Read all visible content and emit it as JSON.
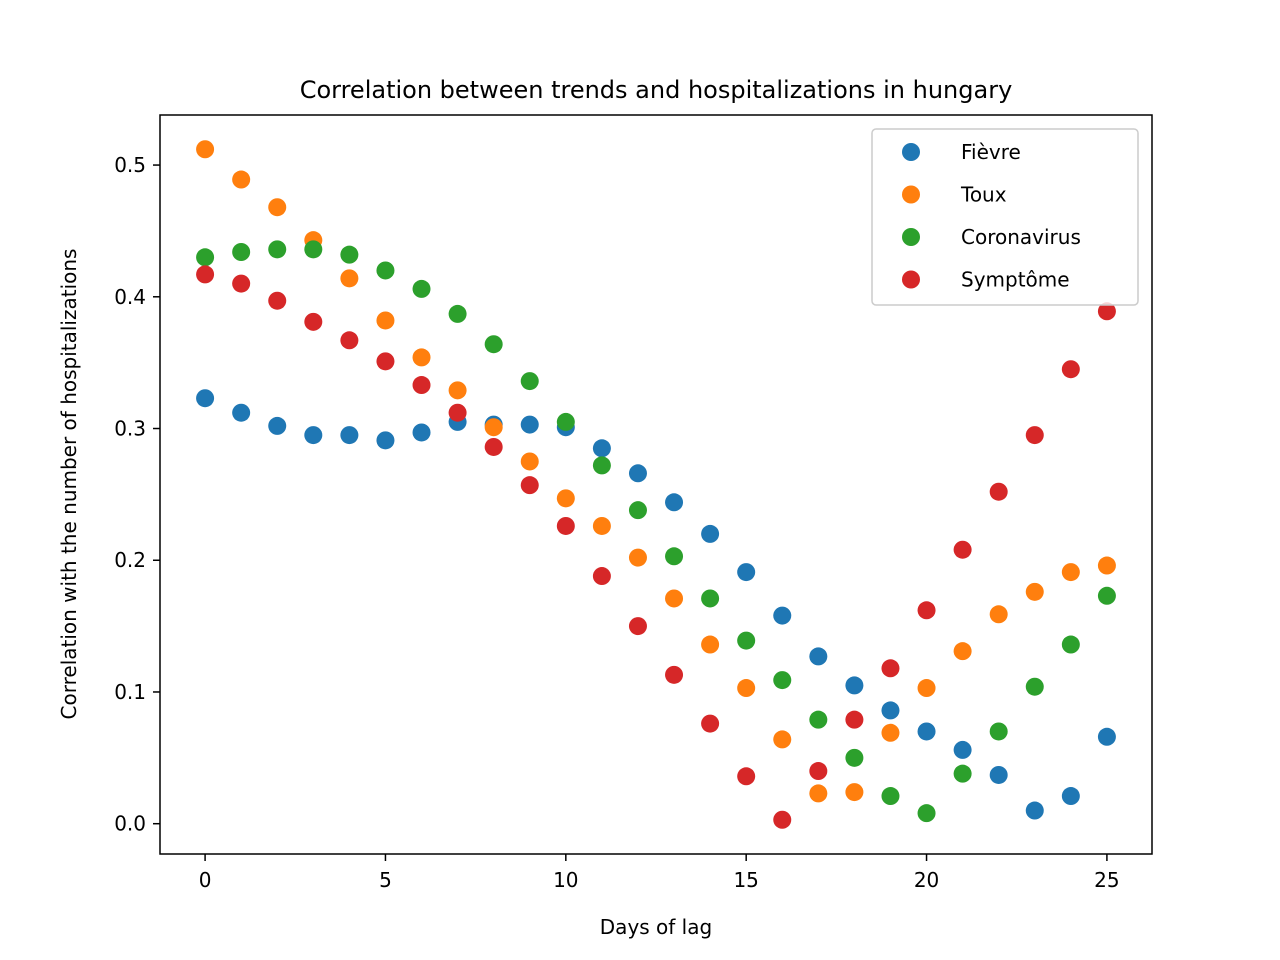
{
  "chart_data": {
    "type": "scatter",
    "title": "Correlation between trends and hospitalizations in hungary",
    "xlabel": "Days of lag",
    "ylabel": "Correlation with the number of hospitalizations",
    "xlim": [
      -1.25,
      26.25
    ],
    "ylim": [
      -0.023,
      0.538
    ],
    "xticks": [
      0,
      5,
      10,
      15,
      20,
      25
    ],
    "xtick_labels": [
      "0",
      "5",
      "10",
      "15",
      "20",
      "25"
    ],
    "yticks": [
      0.0,
      0.1,
      0.2,
      0.3,
      0.4,
      0.5
    ],
    "ytick_labels": [
      "0.0",
      "0.1",
      "0.2",
      "0.3",
      "0.4",
      "0.5"
    ],
    "grid": false,
    "legend_position": "top-right",
    "x": [
      0,
      1,
      2,
      3,
      4,
      5,
      6,
      7,
      8,
      9,
      10,
      11,
      12,
      13,
      14,
      15,
      16,
      17,
      18,
      19,
      20,
      21,
      22,
      23,
      24,
      25
    ],
    "series": [
      {
        "name": "Fièvre",
        "color": "#1f77b4",
        "values": [
          0.323,
          0.312,
          0.302,
          0.295,
          0.295,
          0.291,
          0.297,
          0.305,
          0.303,
          0.303,
          0.301,
          0.285,
          0.266,
          0.244,
          0.22,
          0.191,
          0.158,
          0.127,
          0.105,
          0.086,
          0.07,
          0.056,
          0.037,
          0.01,
          0.021,
          0.066
        ]
      },
      {
        "name": "Toux",
        "color": "#ff7f0e",
        "values": [
          0.512,
          0.489,
          0.468,
          0.443,
          0.414,
          0.382,
          0.354,
          0.329,
          0.301,
          0.275,
          0.247,
          0.226,
          0.202,
          0.171,
          0.136,
          0.103,
          0.064,
          0.023,
          0.024,
          0.069,
          0.103,
          0.131,
          0.159,
          0.176,
          0.191,
          0.196
        ]
      },
      {
        "name": "Coronavirus",
        "color": "#2ca02c",
        "values": [
          0.43,
          0.434,
          0.436,
          0.436,
          0.432,
          0.42,
          0.406,
          0.387,
          0.364,
          0.336,
          0.305,
          0.272,
          0.238,
          0.203,
          0.171,
          0.139,
          0.109,
          0.079,
          0.05,
          0.021,
          0.008,
          0.038,
          0.07,
          0.104,
          0.136,
          0.173
        ]
      },
      {
        "name": "Symptôme",
        "color": "#d62728",
        "values": [
          0.417,
          0.41,
          0.397,
          0.381,
          0.367,
          0.351,
          0.333,
          0.312,
          0.286,
          0.257,
          0.226,
          0.188,
          0.15,
          0.113,
          0.076,
          0.036,
          0.003,
          0.04,
          0.079,
          0.118,
          0.162,
          0.208,
          0.252,
          0.295,
          0.345,
          0.389
        ]
      }
    ]
  }
}
